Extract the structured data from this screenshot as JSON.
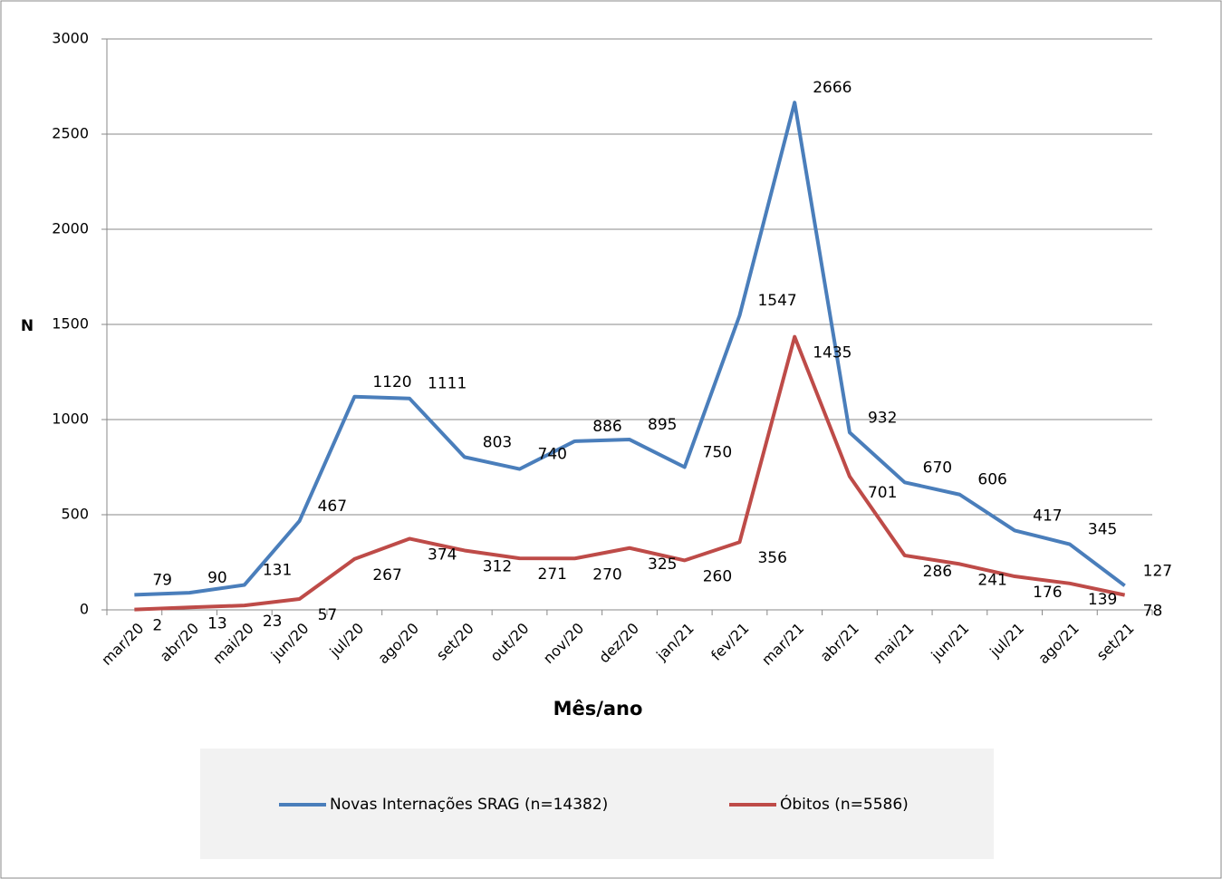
{
  "chart_data": {
    "type": "line",
    "y_label": "N",
    "x_label": "Mês/ano",
    "categories": [
      "mar/20",
      "abr/20",
      "mai/20",
      "jun/20",
      "jul/20",
      "ago/20",
      "set/20",
      "out/20",
      "nov/20",
      "dez/20",
      "jan/21",
      "fev/21",
      "mar/21",
      "abr/21",
      "mai/21",
      "jun/21",
      "jul/21",
      "ago/21",
      "set/21"
    ],
    "series": [
      {
        "name": "Novas Internações SRAG (n=14382)",
        "color": "#4a7ebb",
        "values": [
          79,
          90,
          131,
          467,
          1120,
          1111,
          803,
          740,
          886,
          895,
          750,
          1547,
          2666,
          932,
          670,
          606,
          417,
          345,
          127
        ]
      },
      {
        "name": "Óbitos (n=5586)",
        "color": "#be4b48",
        "values": [
          2,
          13,
          23,
          57,
          267,
          374,
          312,
          271,
          270,
          325,
          260,
          356,
          1435,
          701,
          286,
          241,
          176,
          139,
          78
        ]
      }
    ],
    "ylim": [
      0,
      3000
    ],
    "yticks": [
      0,
      500,
      1000,
      1500,
      2000,
      2500,
      3000
    ],
    "grid": true,
    "legend": "bottom"
  }
}
